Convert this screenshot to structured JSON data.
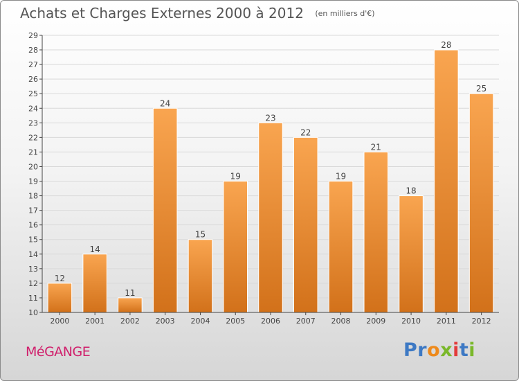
{
  "header": {
    "title": "Achats et Charges Externes 2000 à 2012",
    "unit": "(en milliers d'€)"
  },
  "place_name": "MéGANGE",
  "logo": {
    "text": "Proxiti",
    "letter_colors": [
      "#3d79c4",
      "#3d79c4",
      "#ee8a1c",
      "#7ab82a",
      "#e33b3b",
      "#3d79c4",
      "#7ab82a"
    ]
  },
  "colors": {
    "bar_top": "#f9a550",
    "bar_bottom": "#d2711a",
    "grid": "#d9d9d9",
    "axis": "#444444",
    "text": "#444444"
  },
  "chart_data": {
    "type": "bar",
    "categories": [
      "2000",
      "2001",
      "2002",
      "2003",
      "2004",
      "2005",
      "2006",
      "2007",
      "2008",
      "2009",
      "2010",
      "2011",
      "2012"
    ],
    "values": [
      12,
      14,
      11,
      24,
      15,
      19,
      23,
      22,
      19,
      21,
      18,
      28,
      25
    ],
    "data_labels": [
      "12",
      "14",
      "11",
      "24",
      "15",
      "19",
      "23",
      "22",
      "19",
      "21",
      "18",
      "28",
      "25"
    ],
    "y_ticks": [
      "10",
      "11",
      "12",
      "13",
      "14",
      "15",
      "16",
      "17",
      "18",
      "19",
      "20",
      "21",
      "22",
      "23",
      "24",
      "25",
      "26",
      "27",
      "28",
      "29"
    ],
    "ylim": [
      10,
      29
    ],
    "grid": true,
    "legend": "none"
  }
}
